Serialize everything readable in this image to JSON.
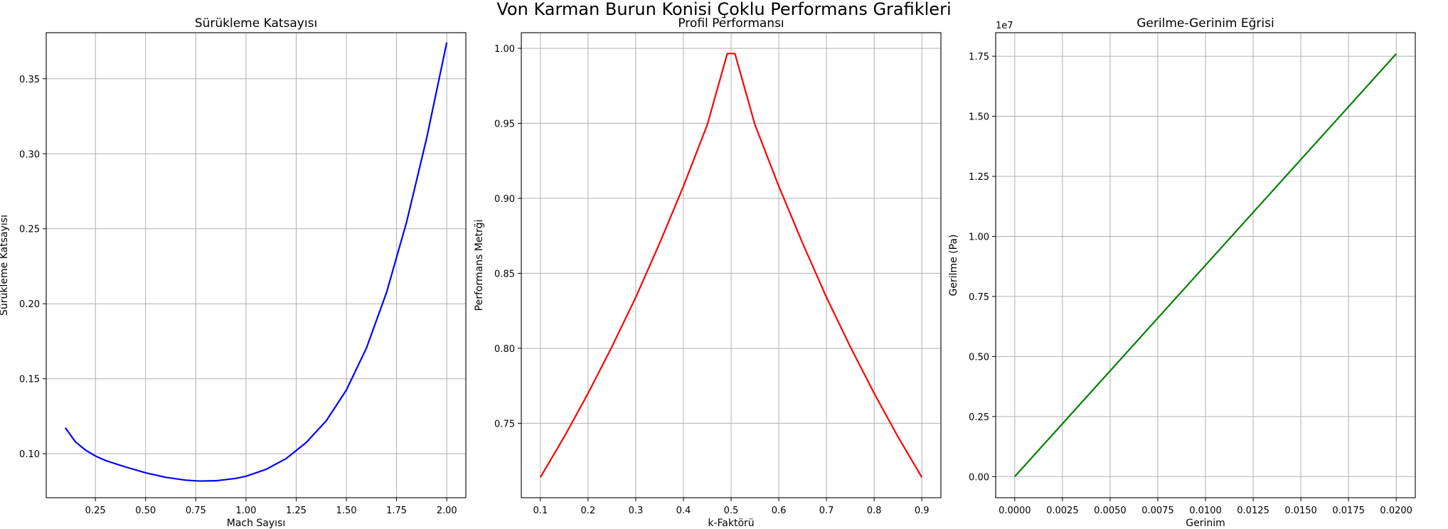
{
  "figure": {
    "title": "Von Karman Burun Konisi Çoklu Performans Grafikleri"
  },
  "chart_data": [
    {
      "type": "line",
      "title": "Sürükleme Katsayısı",
      "xlabel": "Mach Sayısı",
      "ylabel": "Sürükleme Katsayısı",
      "xlim": [
        0.005,
        2.095
      ],
      "ylim": [
        0.0707,
        0.3807
      ],
      "xticks": [
        0.25,
        0.5,
        0.75,
        1.0,
        1.25,
        1.5,
        1.75,
        2.0
      ],
      "xtick_labels": [
        "0.25",
        "0.50",
        "0.75",
        "1.00",
        "1.25",
        "1.50",
        "1.75",
        "2.00"
      ],
      "yticks": [
        0.1,
        0.15,
        0.2,
        0.25,
        0.3,
        0.35
      ],
      "ytick_labels": [
        "0.10",
        "0.15",
        "0.20",
        "0.25",
        "0.30",
        "0.35"
      ],
      "grid": true,
      "color": "#0000ff",
      "series": [
        {
          "x": [
            0.1,
            0.15,
            0.2,
            0.25,
            0.3,
            0.4,
            0.5,
            0.6,
            0.7,
            0.77,
            0.85,
            0.95,
            1.0,
            1.1,
            1.2,
            1.3,
            1.4,
            1.5,
            1.6,
            1.7,
            1.8,
            1.9,
            2.0
          ],
          "y": [
            0.1174,
            0.108,
            0.1025,
            0.0985,
            0.0955,
            0.0912,
            0.0873,
            0.0843,
            0.0824,
            0.0818,
            0.082,
            0.0836,
            0.085,
            0.0896,
            0.0968,
            0.1075,
            0.122,
            0.1425,
            0.1705,
            0.2075,
            0.2545,
            0.3105,
            0.3742
          ]
        }
      ]
    },
    {
      "type": "line",
      "title": "Profil Performansı",
      "xlabel": "k-Faktörü",
      "ylabel": "Performans Metrği",
      "xlim": [
        0.06,
        0.94
      ],
      "ylim": [
        0.7004,
        1.0104
      ],
      "xticks": [
        0.1,
        0.2,
        0.3,
        0.4,
        0.5,
        0.6,
        0.7,
        0.8,
        0.9
      ],
      "xtick_labels": [
        "0.1",
        "0.2",
        "0.3",
        "0.4",
        "0.5",
        "0.6",
        "0.7",
        "0.8",
        "0.9"
      ],
      "yticks": [
        0.75,
        0.8,
        0.85,
        0.9,
        0.95,
        1.0
      ],
      "ytick_labels": [
        "0.75",
        "0.80",
        "0.85",
        "0.90",
        "0.95",
        "1.00"
      ],
      "grid": true,
      "color": "#ff0000",
      "series": [
        {
          "x": [
            0.1,
            0.15,
            0.2,
            0.25,
            0.3,
            0.35,
            0.4,
            0.45,
            0.492,
            0.508,
            0.55,
            0.6,
            0.65,
            0.7,
            0.75,
            0.8,
            0.85,
            0.9
          ],
          "y": [
            0.714,
            0.741,
            0.77,
            0.801,
            0.834,
            0.87,
            0.908,
            0.949,
            0.9965,
            0.9965,
            0.949,
            0.908,
            0.87,
            0.834,
            0.801,
            0.77,
            0.741,
            0.714
          ]
        }
      ]
    },
    {
      "type": "line",
      "title": "Gerilme-Gerinim Eğrisi",
      "xlabel": "Gerinim",
      "ylabel": "Gerilme (Pa)",
      "offset_label": "1e7",
      "xlim": [
        -0.001,
        0.021
      ],
      "ylim": [
        -0.088,
        1.848
      ],
      "xticks": [
        0.0,
        0.0025,
        0.005,
        0.0075,
        0.01,
        0.0125,
        0.015,
        0.0175,
        0.02
      ],
      "xtick_labels": [
        "0.0000",
        "0.0025",
        "0.0050",
        "0.0075",
        "0.0100",
        "0.0125",
        "0.0150",
        "0.0175",
        "0.0200"
      ],
      "yticks": [
        0.0,
        0.25,
        0.5,
        0.75,
        1.0,
        1.25,
        1.5,
        1.75
      ],
      "ytick_labels": [
        "0.00",
        "0.25",
        "0.50",
        "0.75",
        "1.00",
        "1.25",
        "1.50",
        "1.75"
      ],
      "grid": true,
      "color": "#008000",
      "series": [
        {
          "x": [
            0.0,
            0.02
          ],
          "y": [
            0.0,
            1.76
          ]
        }
      ]
    }
  ]
}
